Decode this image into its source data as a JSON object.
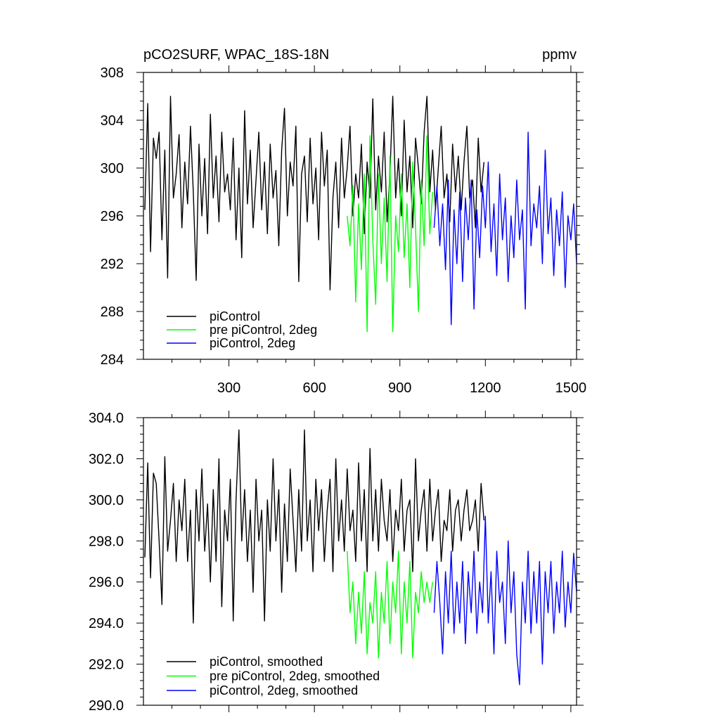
{
  "chart_data": [
    {
      "type": "line",
      "title": "pCO2SURF, WPAC_18S-18N",
      "units": "ppmv",
      "xlabel": "",
      "ylabel": "",
      "xlim": [
        0,
        1520
      ],
      "ylim": [
        284,
        308
      ],
      "xticks": [
        300,
        600,
        900,
        1200,
        1500
      ],
      "yticks": [
        284,
        288,
        292,
        296,
        300,
        304,
        308
      ],
      "ytick_labels": [
        "284",
        "288",
        "292",
        "296",
        "300",
        "304",
        "308"
      ],
      "grid": false,
      "legend": "bottom-left",
      "series": [
        {
          "name": "piControl",
          "color": "#000000",
          "x": [
            5,
            15,
            25,
            35,
            45,
            55,
            65,
            75,
            85,
            95,
            105,
            115,
            125,
            135,
            145,
            155,
            165,
            175,
            185,
            195,
            205,
            215,
            225,
            235,
            245,
            255,
            265,
            275,
            285,
            295,
            305,
            315,
            325,
            335,
            345,
            355,
            365,
            375,
            385,
            395,
            405,
            415,
            425,
            435,
            445,
            455,
            465,
            475,
            485,
            495,
            505,
            515,
            525,
            535,
            545,
            555,
            565,
            575,
            585,
            595,
            605,
            615,
            625,
            635,
            645,
            655,
            665,
            675,
            685,
            695,
            705,
            715,
            725,
            735,
            745,
            755,
            765,
            775,
            785,
            795,
            805,
            815,
            825,
            835,
            845,
            855,
            865,
            875,
            885,
            895,
            905,
            915,
            925,
            935,
            945,
            955,
            965,
            975,
            985,
            995,
            1005,
            1015,
            1025,
            1035,
            1045,
            1055,
            1065,
            1075,
            1085,
            1095,
            1105,
            1115,
            1125,
            1135,
            1145,
            1155,
            1165,
            1175,
            1185,
            1195
          ],
          "y": [
            296.5,
            305.4,
            293.0,
            302.5,
            300.8,
            303.0,
            294.0,
            301.5,
            290.8,
            306.0,
            297.5,
            299.5,
            302.8,
            295.0,
            300.5,
            297.0,
            303.5,
            298.0,
            290.6,
            302.0,
            296.0,
            300.8,
            294.5,
            304.5,
            297.5,
            301.0,
            295.5,
            303.0,
            298.0,
            299.5,
            296.5,
            302.5,
            294.0,
            300.0,
            292.5,
            304.8,
            297.0,
            301.5,
            295.0,
            299.0,
            303.0,
            296.5,
            300.5,
            294.5,
            302.0,
            297.5,
            299.8,
            293.5,
            301.5,
            305.0,
            296.0,
            300.5,
            298.5,
            303.5,
            290.5,
            299.5,
            301.0,
            295.5,
            302.5,
            297.0,
            300.0,
            294.0,
            303.0,
            298.5,
            301.5,
            289.8,
            297.5,
            300.5,
            295.0,
            302.5,
            297.5,
            300.0,
            303.5,
            296.0,
            299.5,
            297.5,
            302.0,
            294.5,
            300.5,
            297.5,
            305.8,
            296.5,
            301.0,
            298.0,
            303.0,
            295.5,
            299.5,
            306.0,
            297.5,
            300.8,
            296.0,
            304.0,
            298.0,
            301.0,
            295.0,
            302.5,
            300.0,
            297.0,
            303.0,
            306.0,
            298.0,
            301.5,
            296.5,
            300.0,
            303.5,
            297.5,
            299.5,
            295.5,
            302.0,
            298.0,
            301.0,
            296.5,
            300.5,
            303.5,
            297.5,
            299.0,
            295.0,
            302.5,
            298.0,
            300.5
          ]
        },
        {
          "name": "pre piControl, 2deg",
          "color": "#00ff00",
          "x": [
            715,
            725,
            735,
            745,
            755,
            765,
            775,
            785,
            795,
            805,
            815,
            825,
            835,
            845,
            855,
            865,
            875,
            885,
            895,
            905,
            915,
            925,
            935,
            945,
            955,
            965,
            975,
            985,
            995,
            1005,
            1015
          ],
          "y": [
            296.0,
            293.5,
            298.5,
            288.8,
            297.0,
            291.5,
            299.5,
            286.3,
            302.7,
            294.0,
            288.6,
            299.5,
            292.0,
            297.5,
            290.5,
            301.0,
            286.3,
            296.0,
            293.0,
            299.5,
            292.5,
            297.0,
            290.0,
            300.5,
            295.0,
            288.0,
            299.0,
            293.5,
            302.7,
            294.5,
            298.0
          ]
        },
        {
          "name": "piControl, 2deg",
          "color": "#0000ff",
          "x": [
            1020,
            1030,
            1040,
            1050,
            1060,
            1070,
            1080,
            1090,
            1100,
            1110,
            1120,
            1130,
            1140,
            1150,
            1160,
            1170,
            1180,
            1190,
            1200,
            1210,
            1220,
            1230,
            1240,
            1250,
            1260,
            1270,
            1280,
            1290,
            1300,
            1310,
            1320,
            1330,
            1340,
            1350,
            1360,
            1370,
            1380,
            1390,
            1400,
            1410,
            1420,
            1430,
            1440,
            1450,
            1460,
            1470,
            1480,
            1490,
            1500,
            1510,
            1520
          ],
          "y": [
            295.0,
            298.5,
            293.5,
            297.0,
            291.5,
            299.0,
            286.9,
            296.5,
            292.0,
            298.0,
            290.5,
            297.5,
            294.0,
            299.0,
            288.2,
            296.5,
            292.5,
            298.5,
            295.0,
            300.5,
            293.0,
            297.0,
            291.0,
            299.5,
            294.0,
            297.5,
            290.5,
            296.0,
            292.5,
            299.0,
            294.0,
            296.5,
            288.2,
            303.0,
            293.5,
            297.0,
            295.0,
            298.5,
            292.0,
            301.5,
            294.5,
            297.5,
            291.0,
            296.5,
            293.5,
            298.0,
            290.0,
            296.0,
            294.0,
            297.0,
            292.0
          ]
        }
      ]
    },
    {
      "type": "line",
      "title": "",
      "xlabel": "",
      "ylabel": "",
      "xlim": [
        0,
        1520
      ],
      "ylim": [
        290.0,
        304.0
      ],
      "xticks": [
        300,
        600,
        900,
        1200,
        1500
      ],
      "yticks": [
        290.0,
        292.0,
        294.0,
        296.0,
        298.0,
        300.0,
        302.0,
        304.0
      ],
      "ytick_labels": [
        "290.0",
        "292.0",
        "294.0",
        "296.0",
        "298.0",
        "300.0",
        "302.0",
        "304.0"
      ],
      "grid": false,
      "legend": "bottom-left",
      "series": [
        {
          "name": "piControl, smoothed",
          "color": "#000000",
          "x": [
            5,
            15,
            25,
            35,
            45,
            55,
            65,
            75,
            85,
            95,
            105,
            115,
            125,
            135,
            145,
            155,
            165,
            175,
            185,
            195,
            205,
            215,
            225,
            235,
            245,
            255,
            265,
            275,
            285,
            295,
            305,
            315,
            325,
            335,
            345,
            355,
            365,
            375,
            385,
            395,
            405,
            415,
            425,
            435,
            445,
            455,
            465,
            475,
            485,
            495,
            505,
            515,
            525,
            535,
            545,
            555,
            565,
            575,
            585,
            595,
            605,
            615,
            625,
            635,
            645,
            655,
            665,
            675,
            685,
            695,
            705,
            715,
            725,
            735,
            745,
            755,
            765,
            775,
            785,
            795,
            805,
            815,
            825,
            835,
            845,
            855,
            865,
            875,
            885,
            895,
            905,
            915,
            925,
            935,
            945,
            955,
            965,
            975,
            985,
            995,
            1005,
            1015,
            1025,
            1035,
            1045,
            1055,
            1065,
            1075,
            1085,
            1095,
            1105,
            1115,
            1125,
            1135,
            1145,
            1155,
            1165,
            1175,
            1185,
            1195
          ],
          "y": [
            297.2,
            301.8,
            296.2,
            301.3,
            300.8,
            298.0,
            294.9,
            302.1,
            297.5,
            299.0,
            300.8,
            297.0,
            300.0,
            298.5,
            301.0,
            297.0,
            299.5,
            294.0,
            300.5,
            298.0,
            301.5,
            297.5,
            299.8,
            296.0,
            300.5,
            297.0,
            302.0,
            294.8,
            299.5,
            298.0,
            301.0,
            294.1,
            300.0,
            303.4,
            298.0,
            300.5,
            297.0,
            299.5,
            295.5,
            301.0,
            298.0,
            299.5,
            294.1,
            300.0,
            297.5,
            302.0,
            298.0,
            300.5,
            295.5,
            299.8,
            297.0,
            301.5,
            299.0,
            296.5,
            300.5,
            297.5,
            303.4,
            298.0,
            300.0,
            296.5,
            301.0,
            298.5,
            300.5,
            297.0,
            299.5,
            301.0,
            296.5,
            302.0,
            298.0,
            300.0,
            297.5,
            301.5,
            298.5,
            299.5,
            297.0,
            301.8,
            298.0,
            300.5,
            296.5,
            302.5,
            298.0,
            300.5,
            297.5,
            301.0,
            299.0,
            298.0,
            300.5,
            297.0,
            299.5,
            298.5,
            301.0,
            297.5,
            299.5,
            300.0,
            296.5,
            302.0,
            298.0,
            299.5,
            300.5,
            297.5,
            301.0,
            298.0,
            299.5,
            300.5,
            297.0,
            299.0,
            298.5,
            300.5,
            297.5,
            299.5,
            300.0,
            298.0,
            299.5,
            300.5,
            298.5,
            299.0,
            300.0,
            297.5,
            300.8,
            299.0
          ]
        },
        {
          "name": "pre piControl, 2deg, smoothed",
          "color": "#00ff00",
          "x": [
            715,
            725,
            735,
            745,
            755,
            765,
            775,
            785,
            795,
            805,
            815,
            825,
            835,
            845,
            855,
            865,
            875,
            885,
            895,
            905,
            915,
            925,
            935,
            945,
            955,
            965,
            975,
            985,
            995,
            1005,
            1015
          ],
          "y": [
            297.5,
            294.5,
            296.0,
            293.0,
            295.5,
            293.5,
            296.5,
            292.5,
            295.0,
            294.0,
            296.5,
            292.3,
            295.5,
            294.0,
            297.0,
            293.0,
            296.0,
            294.5,
            297.5,
            292.5,
            296.0,
            294.0,
            297.0,
            292.3,
            295.5,
            294.5,
            296.5,
            295.0,
            296.0,
            295.0,
            296.0
          ]
        },
        {
          "name": "piControl, 2deg, smoothed",
          "color": "#0000ff",
          "x": [
            1020,
            1030,
            1040,
            1050,
            1060,
            1070,
            1080,
            1090,
            1100,
            1110,
            1120,
            1130,
            1140,
            1150,
            1160,
            1170,
            1180,
            1190,
            1200,
            1210,
            1220,
            1230,
            1240,
            1250,
            1260,
            1270,
            1280,
            1290,
            1300,
            1310,
            1320,
            1330,
            1340,
            1350,
            1360,
            1370,
            1380,
            1390,
            1400,
            1410,
            1420,
            1430,
            1440,
            1450,
            1460,
            1470,
            1480,
            1490,
            1500,
            1510,
            1520
          ],
          "y": [
            294.5,
            297.0,
            295.0,
            292.5,
            296.5,
            294.0,
            297.5,
            293.5,
            296.0,
            294.0,
            297.0,
            293.0,
            296.5,
            294.5,
            297.5,
            293.5,
            296.0,
            294.5,
            299.2,
            294.0,
            296.5,
            292.5,
            297.5,
            295.0,
            296.0,
            293.0,
            298.0,
            294.5,
            296.5,
            292.5,
            291.0,
            296.0,
            294.0,
            297.5,
            293.5,
            296.5,
            294.0,
            297.0,
            292.0,
            296.5,
            294.5,
            297.0,
            293.5,
            296.0,
            294.5,
            297.5,
            293.8,
            296.0,
            294.5,
            297.4,
            295.5
          ]
        }
      ]
    }
  ]
}
